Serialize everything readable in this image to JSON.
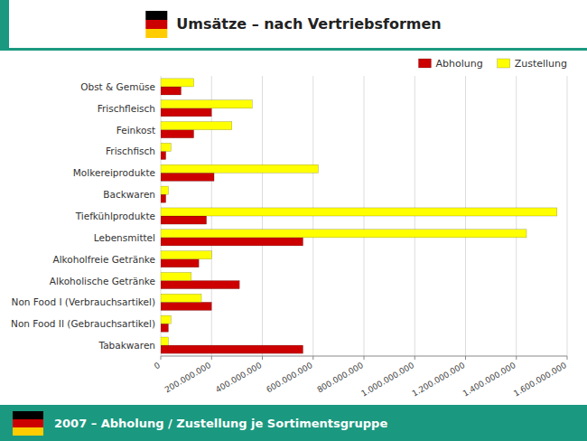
{
  "chart_data": {
    "type": "bar",
    "orientation": "horizontal",
    "title": "Umsätze – nach Vertriebsformen",
    "annotations": [
      "2007 – Abholung / Zustellung je Sortimentsgruppe"
    ],
    "categories": [
      "Tabakwaren",
      "Non Food II (Gebrauchsartikel)",
      "Non Food I (Verbrauchsartikel)",
      "Alkoholische Getränke",
      "Alkoholfreie Getränke",
      "Lebensmittel",
      "Tiefkühlprodukte",
      "Backwaren",
      "Molkereiprodukte",
      "Frischfisch",
      "Feinkost",
      "Frischfleisch",
      "Obst & Gemüse"
    ],
    "series": [
      {
        "name": "Abholung",
        "color": "#CC0000",
        "values": [
          560000000,
          30000000,
          200000000,
          310000000,
          150000000,
          560000000,
          180000000,
          20000000,
          210000000,
          20000000,
          130000000,
          200000000,
          80000000
        ]
      },
      {
        "name": "Zustellung",
        "color": "#FFFF00",
        "values": [
          30000000,
          40000000,
          160000000,
          120000000,
          200000000,
          1440000000,
          1560000000,
          30000000,
          620000000,
          40000000,
          280000000,
          360000000,
          130000000
        ]
      }
    ],
    "xlim": [
      0,
      1600000000
    ],
    "xticks": [
      0,
      {
        "value": 200000000,
        "label": "200.000.000"
      },
      {
        "value": 400000000,
        "label": "400.000.000"
      },
      {
        "value": 600000000,
        "label": "600.000.000"
      },
      {
        "value": 800000000,
        "label": "800.000.000"
      },
      {
        "value": 1000000000,
        "label": "1.000.000.000"
      },
      {
        "value": 1200000000,
        "label": "1.200.000.000"
      },
      {
        "value": 1400000000,
        "label": "1.400.000.000"
      },
      {
        "value": 1600000000,
        "label": "1.600.000.000"
      }
    ],
    "grid": true,
    "legend": "upper right"
  }
}
